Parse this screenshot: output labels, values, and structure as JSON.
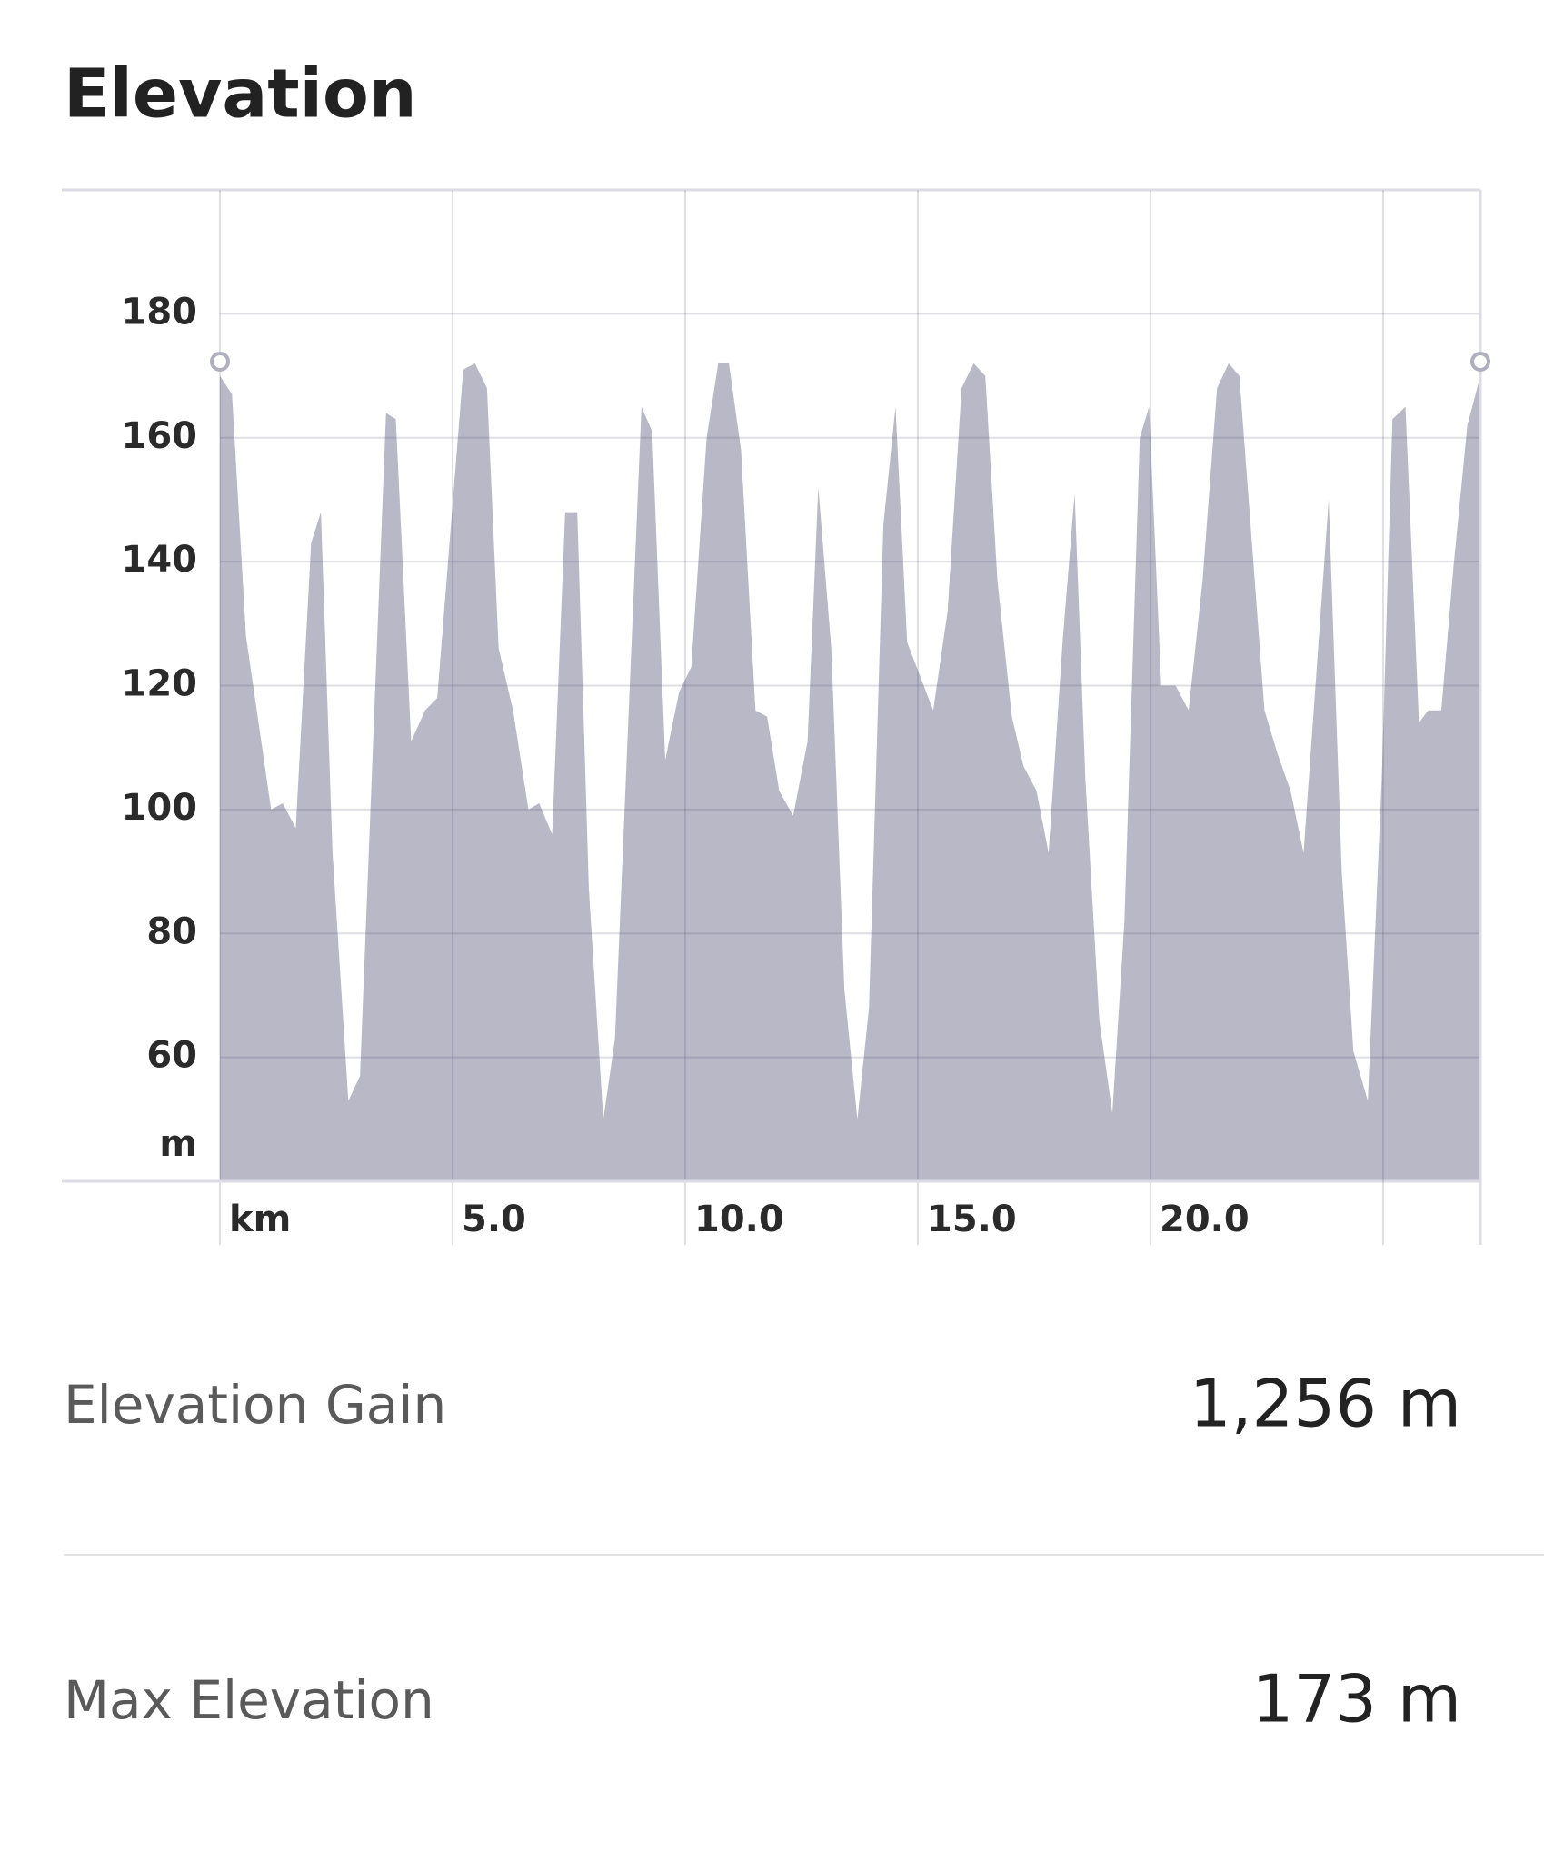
{
  "header": {
    "title": "Elevation"
  },
  "chart_data": {
    "type": "area",
    "color": "#b9b8c6",
    "ylabel": "m",
    "xlim": [
      0,
      27.09
    ],
    "ylim": [
      40,
      200
    ],
    "yticks": [
      60,
      80,
      100,
      120,
      140,
      160,
      180
    ],
    "xticks": [
      {
        "value": 0,
        "label": "km"
      },
      {
        "value": 5,
        "label": "5.0"
      },
      {
        "value": 10,
        "label": "10.0"
      },
      {
        "value": 15,
        "label": "15.0"
      },
      {
        "value": 20,
        "label": "20.0"
      }
    ],
    "grid": true,
    "x": [
      0,
      0.26,
      0.56,
      1.1,
      1.35,
      1.63,
      1.96,
      2.17,
      2.42,
      2.76,
      3.01,
      3.57,
      3.78,
      4.11,
      4.41,
      4.67,
      5.23,
      5.48,
      5.74,
      5.99,
      6.3,
      6.63,
      6.86,
      7.14,
      7.42,
      7.68,
      7.93,
      8.24,
      8.49,
      9.06,
      9.29,
      9.57,
      9.87,
      10.13,
      10.46,
      10.71,
      10.94,
      11.2,
      11.51,
      11.76,
      12.02,
      12.32,
      12.63,
      12.86,
      13.14,
      13.42,
      13.7,
      13.95,
      14.26,
      14.52,
      14.77,
      15.33,
      15.64,
      15.94,
      16.2,
      16.45,
      16.71,
      17.02,
      17.27,
      17.55,
      17.81,
      18.11,
      18.37,
      18.6,
      18.9,
      19.18,
      19.44,
      19.77,
      19.97,
      20.23,
      20.54,
      20.82,
      21.12,
      21.43,
      21.68,
      21.91,
      22.45,
      22.73,
      23.01,
      23.29,
      23.83,
      24.11,
      24.36,
      24.67,
      24.97,
      25.2,
      25.48,
      25.77,
      25.97,
      26.25,
      26.51,
      26.81,
      27.09
    ],
    "values": [
      170,
      167,
      128,
      100,
      101,
      97,
      143,
      148,
      93,
      53,
      57,
      164,
      163,
      111,
      116,
      118,
      171,
      172,
      168,
      126,
      116,
      100,
      101,
      96,
      148,
      148,
      87,
      50,
      63,
      165,
      161,
      108,
      119,
      123,
      160,
      172,
      172,
      158,
      116,
      115,
      103,
      99,
      111,
      152,
      126,
      71,
      50,
      68,
      146,
      165,
      127,
      116,
      132,
      168,
      172,
      170,
      137,
      115,
      107,
      103,
      93,
      127,
      151,
      105,
      66,
      51,
      82,
      160,
      165,
      120,
      120,
      116,
      137,
      168,
      172,
      170,
      116,
      109,
      103,
      93,
      150,
      90,
      61,
      53,
      105,
      163,
      165,
      114,
      116,
      116,
      139,
      162,
      170
    ]
  },
  "stats": [
    {
      "label": "Elevation Gain",
      "value": "1,256 m"
    },
    {
      "label": "Max Elevation",
      "value": "173 m"
    }
  ]
}
